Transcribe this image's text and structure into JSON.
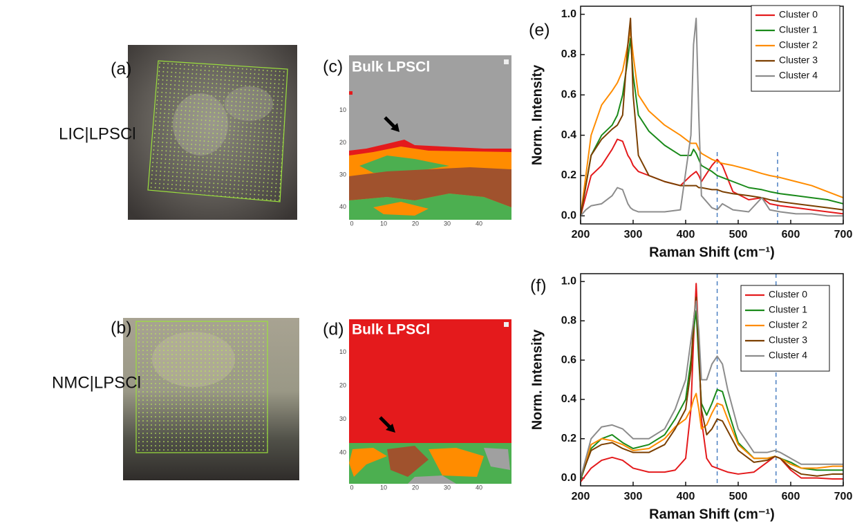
{
  "samples": [
    {
      "panel_label": "(a)",
      "name": "LIC|LPSCl"
    },
    {
      "panel_label": "(b)",
      "name": "NMC|LPSCl"
    }
  ],
  "maps": [
    {
      "panel_label": "(c)",
      "title": "Bulk LPSCl",
      "xticks": [
        0,
        10,
        20,
        30,
        40
      ],
      "yticks": [
        10,
        20,
        30,
        40
      ]
    },
    {
      "panel_label": "(d)",
      "title": "Bulk LPSCl",
      "xticks": [
        0,
        10,
        20,
        30,
        40
      ],
      "yticks": [
        10,
        20,
        30,
        40
      ]
    }
  ],
  "chart_data": [
    {
      "type": "line",
      "panel_label": "(e)",
      "xlabel": "Raman Shift (cm⁻¹)",
      "ylabel": "Norm. Intensity",
      "x": [
        200,
        210,
        220,
        240,
        260,
        270,
        280,
        290,
        295,
        300,
        310,
        330,
        360,
        390,
        410,
        415,
        420,
        425,
        430,
        450,
        460,
        470,
        490,
        520,
        545,
        560,
        580,
        610,
        640,
        670,
        700
      ],
      "series": [
        {
          "name": "Cluster 0",
          "color": "#e41a1c",
          "values": [
            0,
            0.1,
            0.2,
            0.25,
            0.33,
            0.38,
            0.37,
            0.3,
            0.28,
            0.25,
            0.22,
            0.2,
            0.17,
            0.15,
            0.2,
            0.21,
            0.22,
            0.2,
            0.17,
            0.25,
            0.28,
            0.25,
            0.12,
            0.08,
            0.09,
            0.06,
            0.05,
            0.04,
            0.03,
            0.02,
            0.01
          ]
        },
        {
          "name": "Cluster 1",
          "color": "#1a8a1a",
          "values": [
            0,
            0.15,
            0.3,
            0.4,
            0.45,
            0.5,
            0.6,
            0.78,
            0.88,
            0.7,
            0.5,
            0.42,
            0.35,
            0.3,
            0.3,
            0.33,
            0.31,
            0.28,
            0.25,
            0.22,
            0.2,
            0.19,
            0.17,
            0.14,
            0.13,
            0.12,
            0.11,
            0.1,
            0.09,
            0.08,
            0.06
          ]
        },
        {
          "name": "Cluster 2",
          "color": "#ff8c00",
          "values": [
            0,
            0.2,
            0.4,
            0.55,
            0.62,
            0.66,
            0.72,
            0.85,
            0.92,
            0.8,
            0.6,
            0.52,
            0.45,
            0.4,
            0.36,
            0.36,
            0.36,
            0.33,
            0.31,
            0.28,
            0.27,
            0.26,
            0.25,
            0.23,
            0.21,
            0.2,
            0.19,
            0.17,
            0.15,
            0.12,
            0.09
          ]
        },
        {
          "name": "Cluster 3",
          "color": "#7b3f00",
          "values": [
            0,
            0.15,
            0.3,
            0.38,
            0.43,
            0.45,
            0.5,
            0.85,
            0.98,
            0.6,
            0.3,
            0.2,
            0.17,
            0.15,
            0.15,
            0.15,
            0.15,
            0.14,
            0.14,
            0.13,
            0.13,
            0.12,
            0.11,
            0.1,
            0.09,
            0.08,
            0.07,
            0.06,
            0.05,
            0.04,
            0.03
          ]
        },
        {
          "name": "Cluster 4",
          "color": "#8c8c8c",
          "values": [
            0,
            0.03,
            0.05,
            0.06,
            0.1,
            0.14,
            0.13,
            0.06,
            0.04,
            0.03,
            0.02,
            0.02,
            0.02,
            0.03,
            0.4,
            0.85,
            0.98,
            0.5,
            0.1,
            0.04,
            0.03,
            0.06,
            0.03,
            0.02,
            0.09,
            0.03,
            0.02,
            0.01,
            0.01,
            0,
            0
          ]
        }
      ],
      "xlim": [
        200,
        700
      ],
      "ylim": [
        -0.04,
        1.04
      ],
      "xticks": [
        200,
        300,
        400,
        500,
        600,
        700
      ],
      "yticks": [
        {
          "value": 0,
          "label": "0.0"
        },
        0.2,
        0.4,
        0.6,
        0.8,
        {
          "value": 1,
          "label": "1.0"
        }
      ],
      "legend": "upper right",
      "vlines": [
        460,
        575
      ]
    },
    {
      "type": "line",
      "panel_label": "(f)",
      "xlabel": "Raman Shift (cm⁻¹)",
      "ylabel": "Norm. Intensity",
      "x": [
        200,
        220,
        240,
        260,
        280,
        300,
        330,
        360,
        380,
        400,
        410,
        415,
        420,
        425,
        430,
        440,
        450,
        460,
        470,
        480,
        500,
        530,
        555,
        570,
        580,
        600,
        620,
        650,
        680,
        700
      ],
      "series": [
        {
          "name": "Cluster 0",
          "color": "#e41a1c",
          "values": [
            -0.02,
            0.05,
            0.09,
            0.105,
            0.09,
            0.05,
            0.03,
            0.03,
            0.04,
            0.1,
            0.35,
            0.7,
            0.99,
            0.7,
            0.3,
            0.1,
            0.06,
            0.05,
            0.04,
            0.03,
            0.02,
            0.03,
            0.08,
            0.11,
            0.1,
            0.04,
            0,
            0,
            -0.005,
            -0.005
          ]
        },
        {
          "name": "Cluster 1",
          "color": "#1a8a1a",
          "values": [
            -0.01,
            0.15,
            0.2,
            0.22,
            0.18,
            0.15,
            0.17,
            0.22,
            0.3,
            0.4,
            0.6,
            0.75,
            0.85,
            0.6,
            0.38,
            0.32,
            0.38,
            0.45,
            0.44,
            0.35,
            0.18,
            0.1,
            0.1,
            0.11,
            0.1,
            0.08,
            0.05,
            0.04,
            0.04,
            0.04
          ]
        },
        {
          "name": "Cluster 2",
          "color": "#ff8c00",
          "values": [
            0,
            0.17,
            0.2,
            0.19,
            0.17,
            0.14,
            0.15,
            0.2,
            0.26,
            0.3,
            0.35,
            0.4,
            0.43,
            0.35,
            0.25,
            0.27,
            0.33,
            0.38,
            0.37,
            0.3,
            0.17,
            0.1,
            0.1,
            0.11,
            0.1,
            0.07,
            0.05,
            0.05,
            0.06,
            0.06
          ]
        },
        {
          "name": "Cluster 3",
          "color": "#7b3f00",
          "values": [
            0,
            0.14,
            0.17,
            0.18,
            0.15,
            0.13,
            0.13,
            0.17,
            0.25,
            0.35,
            0.55,
            0.8,
            0.92,
            0.65,
            0.35,
            0.22,
            0.25,
            0.3,
            0.29,
            0.24,
            0.14,
            0.08,
            0.09,
            0.11,
            0.1,
            0.05,
            0.02,
            0.01,
            0.02,
            0.02
          ]
        },
        {
          "name": "Cluster 4",
          "color": "#8c8c8c",
          "values": [
            0,
            0.2,
            0.26,
            0.27,
            0.25,
            0.2,
            0.2,
            0.25,
            0.35,
            0.5,
            0.7,
            0.8,
            0.9,
            0.75,
            0.5,
            0.5,
            0.58,
            0.62,
            0.58,
            0.45,
            0.25,
            0.13,
            0.13,
            0.14,
            0.13,
            0.1,
            0.07,
            0.07,
            0.07,
            0.07
          ]
        }
      ],
      "xlim": [
        200,
        700
      ],
      "ylim": [
        -0.04,
        1.04
      ],
      "xticks": [
        200,
        300,
        400,
        500,
        600,
        700
      ],
      "yticks": [
        {
          "value": 0,
          "label": "0.0"
        },
        0.2,
        0.4,
        0.6,
        0.8,
        {
          "value": 1,
          "label": "1.0"
        }
      ],
      "legend": "upper right",
      "vlines": [
        460,
        572
      ]
    }
  ]
}
